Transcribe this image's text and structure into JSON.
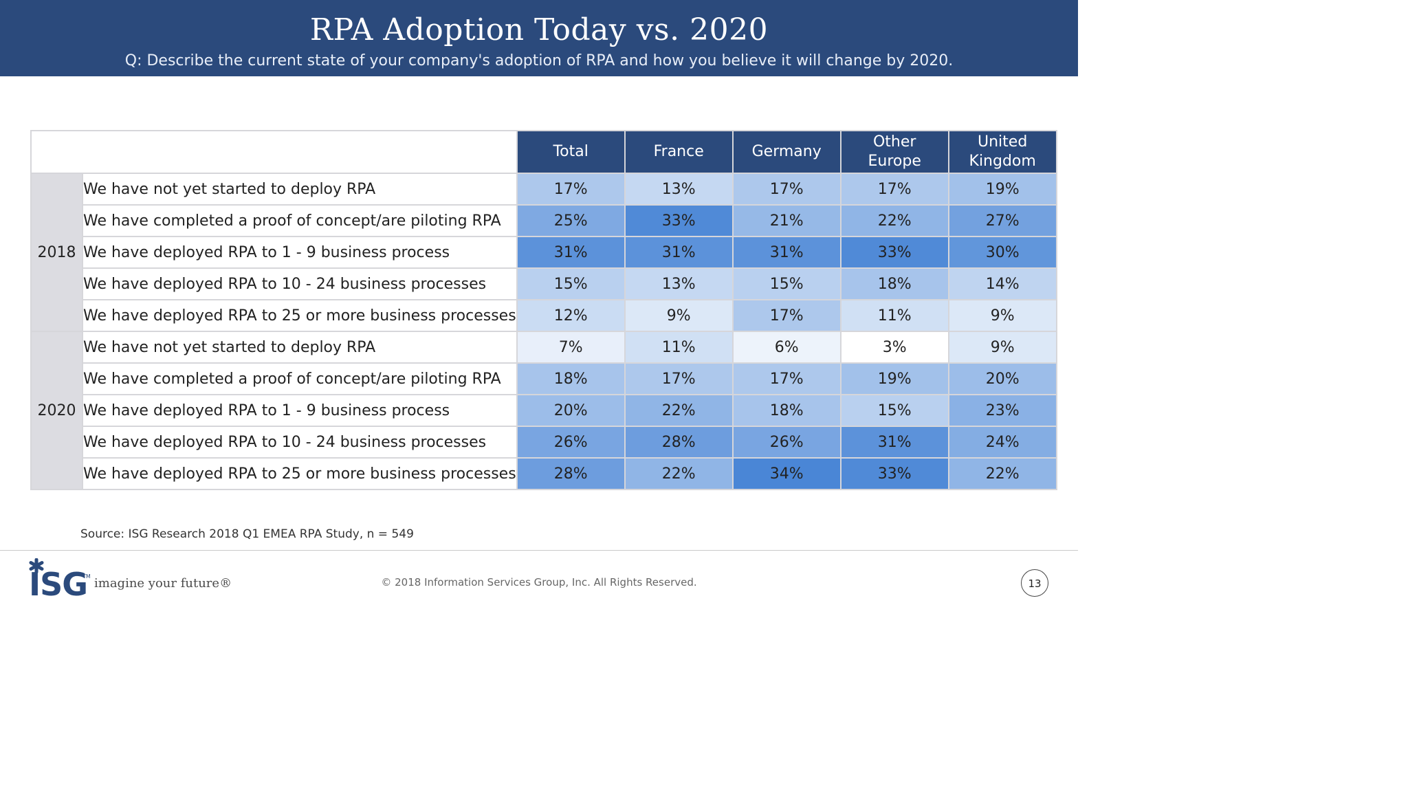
{
  "header": {
    "title": "RPA Adoption Today vs. 2020",
    "subtitle": "Q: Describe the current state of your company's adoption of RPA and how you believe it will change by 2020."
  },
  "colors": {
    "header_bg": "#2b4a7c",
    "year_bg": "#dcdce1",
    "heat_low": "#ffffff",
    "heat_high": "#4a86d6"
  },
  "chart_data": {
    "type": "table",
    "title": "RPA Adoption Today vs. 2020",
    "columns": [
      "Total",
      "France",
      "Germany",
      "Other\nEurope",
      "United\nKingdom"
    ],
    "groups": [
      {
        "year": "2018",
        "rows": [
          {
            "label": "We have not yet started to deploy RPA",
            "values": [
              "17%",
              "13%",
              "17%",
              "17%",
              "19%"
            ]
          },
          {
            "label": "We have completed a proof of concept/are piloting RPA",
            "values": [
              "25%",
              "33%",
              "21%",
              "22%",
              "27%"
            ]
          },
          {
            "label": "We have deployed RPA to 1 - 9 business process",
            "values": [
              "31%",
              "31%",
              "31%",
              "33%",
              "30%"
            ]
          },
          {
            "label": "We have deployed RPA to 10 - 24 business processes",
            "values": [
              "15%",
              "13%",
              "15%",
              "18%",
              "14%"
            ]
          },
          {
            "label": "We have deployed RPA to 25 or more business processes",
            "values": [
              "12%",
              "9%",
              "17%",
              "11%",
              "9%"
            ]
          }
        ]
      },
      {
        "year": "2020",
        "rows": [
          {
            "label": "We have not yet started to deploy RPA",
            "values": [
              "7%",
              "11%",
              "6%",
              "3%",
              "9%"
            ]
          },
          {
            "label": "We have completed a proof of concept/are piloting RPA",
            "values": [
              "18%",
              "17%",
              "17%",
              "19%",
              "20%"
            ]
          },
          {
            "label": "We have deployed RPA to 1 - 9 business process",
            "values": [
              "20%",
              "22%",
              "18%",
              "15%",
              "23%"
            ]
          },
          {
            "label": "We have deployed RPA to 10 - 24 business processes",
            "values": [
              "26%",
              "28%",
              "26%",
              "31%",
              "24%"
            ]
          },
          {
            "label": "We have deployed RPA to 25 or more business processes",
            "values": [
              "28%",
              "22%",
              "34%",
              "33%",
              "22%"
            ]
          }
        ]
      }
    ]
  },
  "footer": {
    "source": "Source: ISG Research 2018 Q1 EMEA RPA Study, n = 549",
    "logo_text": "ISG",
    "trademark": "TM",
    "tagline": "imagine your future®",
    "copyright": "© 2018 Information Services Group, Inc.  All Rights Reserved.",
    "page_number": "13"
  }
}
